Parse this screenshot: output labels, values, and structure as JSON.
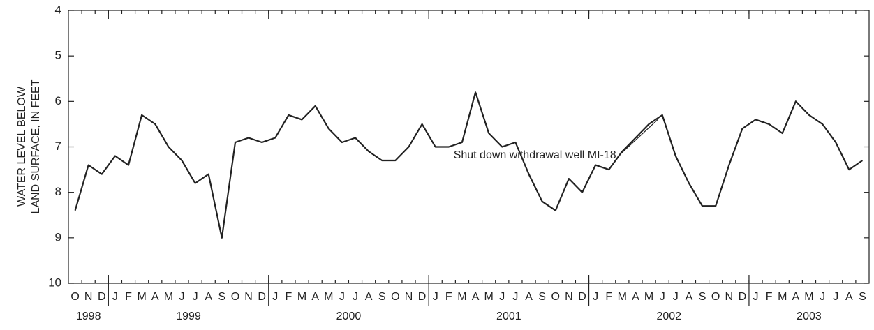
{
  "chart_data": {
    "type": "line",
    "y_label": [
      "WATER LEVEL BELOW",
      "LAND SURFACE, IN FEET"
    ],
    "ylim": [
      4,
      10
    ],
    "y_inverted": true,
    "yticks": [
      4,
      5,
      6,
      7,
      8,
      9,
      10
    ],
    "groups": [
      {
        "label": "1998",
        "categories": [
          "O",
          "N",
          "D"
        ]
      },
      {
        "label": "1999",
        "categories": [
          "J",
          "F",
          "M",
          "A",
          "M",
          "J",
          "J",
          "A",
          "S",
          "O",
          "N",
          "D"
        ]
      },
      {
        "label": "2000",
        "categories": [
          "J",
          "F",
          "M",
          "A",
          "M",
          "J",
          "J",
          "A",
          "S",
          "O",
          "N",
          "D"
        ]
      },
      {
        "label": "2001",
        "categories": [
          "J",
          "F",
          "M",
          "A",
          "M",
          "J",
          "J",
          "A",
          "S",
          "O",
          "N",
          "D"
        ]
      },
      {
        "label": "2002",
        "categories": [
          "J",
          "F",
          "M",
          "A",
          "M",
          "J",
          "J",
          "A",
          "S",
          "O",
          "N",
          "D"
        ]
      },
      {
        "label": "2003",
        "categories": [
          "J",
          "F",
          "M",
          "A",
          "M",
          "J",
          "J",
          "A",
          "S"
        ]
      }
    ],
    "color": "#222222",
    "values": [
      8.4,
      7.4,
      7.6,
      7.2,
      7.4,
      6.3,
      6.5,
      7.0,
      7.3,
      7.8,
      7.6,
      9.0,
      6.9,
      6.8,
      6.9,
      6.8,
      6.3,
      6.4,
      6.1,
      6.6,
      6.9,
      6.8,
      7.1,
      7.3,
      7.3,
      7.0,
      6.5,
      7.0,
      7.0,
      6.9,
      5.8,
      6.7,
      7.0,
      6.9,
      7.6,
      8.2,
      8.4,
      7.7,
      8.0,
      7.4,
      7.5,
      7.1,
      6.8,
      6.5,
      6.3,
      7.2,
      7.8,
      8.3,
      8.3,
      7.4,
      6.6,
      6.4,
      6.5,
      6.7,
      6.0,
      6.3,
      6.5,
      6.9,
      7.5,
      7.3
    ],
    "annotation": {
      "text": "Shut down withdrawal well MI-18",
      "at_index": 44
    }
  }
}
